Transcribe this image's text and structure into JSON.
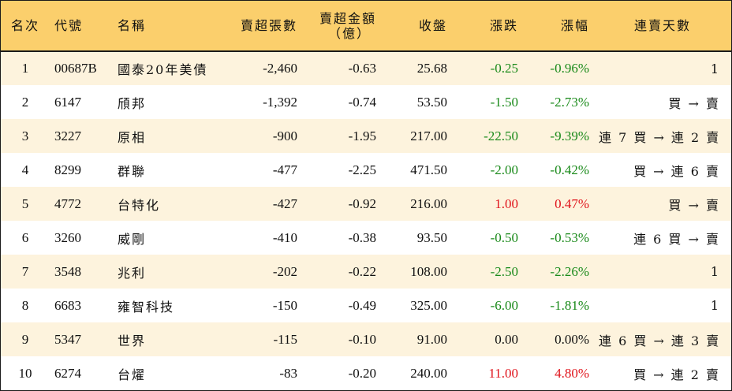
{
  "table": {
    "headers": {
      "rank": "名次",
      "code": "代號",
      "name": "名稱",
      "sell_shares": "賣超張數",
      "sell_amount_line1": "賣超金額",
      "sell_amount_line2": "（億）",
      "close": "收盤",
      "change": "漲跌",
      "change_pct": "漲幅",
      "streak": "連賣天數"
    },
    "rows": [
      {
        "rank": "1",
        "code": "00687B",
        "name": "國泰20年美債",
        "sell_shares": "-2,460",
        "sell_amount": "-0.63",
        "close": "25.68",
        "change": "-0.25",
        "change_pct": "-0.96%",
        "streak": "1"
      },
      {
        "rank": "2",
        "code": "6147",
        "name": "頎邦",
        "sell_shares": "-1,392",
        "sell_amount": "-0.74",
        "close": "53.50",
        "change": "-1.50",
        "change_pct": "-2.73%",
        "streak": "買 → 賣"
      },
      {
        "rank": "3",
        "code": "3227",
        "name": "原相",
        "sell_shares": "-900",
        "sell_amount": "-1.95",
        "close": "217.00",
        "change": "-22.50",
        "change_pct": "-9.39%",
        "streak": "連 7 買 → 連 2 賣"
      },
      {
        "rank": "4",
        "code": "8299",
        "name": "群聯",
        "sell_shares": "-477",
        "sell_amount": "-2.25",
        "close": "471.50",
        "change": "-2.00",
        "change_pct": "-0.42%",
        "streak": "買 → 連 6 賣"
      },
      {
        "rank": "5",
        "code": "4772",
        "name": "台特化",
        "sell_shares": "-427",
        "sell_amount": "-0.92",
        "close": "216.00",
        "change": "1.00",
        "change_pct": "0.47%",
        "streak": "買 → 賣"
      },
      {
        "rank": "6",
        "code": "3260",
        "name": "威剛",
        "sell_shares": "-410",
        "sell_amount": "-0.38",
        "close": "93.50",
        "change": "-0.50",
        "change_pct": "-0.53%",
        "streak": "連 6 買 → 賣"
      },
      {
        "rank": "7",
        "code": "3548",
        "name": "兆利",
        "sell_shares": "-202",
        "sell_amount": "-0.22",
        "close": "108.00",
        "change": "-2.50",
        "change_pct": "-2.26%",
        "streak": "1"
      },
      {
        "rank": "8",
        "code": "6683",
        "name": "雍智科技",
        "sell_shares": "-150",
        "sell_amount": "-0.49",
        "close": "325.00",
        "change": "-6.00",
        "change_pct": "-1.81%",
        "streak": "1"
      },
      {
        "rank": "9",
        "code": "5347",
        "name": "世界",
        "sell_shares": "-115",
        "sell_amount": "-0.10",
        "close": "91.00",
        "change": "0.00",
        "change_pct": "0.00%",
        "streak": "連 6 買 → 連 3 賣"
      },
      {
        "rank": "10",
        "code": "6274",
        "name": "台燿",
        "sell_shares": "-83",
        "sell_amount": "-0.20",
        "close": "240.00",
        "change": "11.00",
        "change_pct": "4.80%",
        "streak": "買 → 連 2 賣"
      }
    ]
  },
  "colors": {
    "header_bg": "#fbcf6c",
    "odd_row_bg": "#fdf3dd",
    "even_row_bg": "#ffffff",
    "down": "#1a8a1a",
    "up": "#e0141c",
    "flat": "#111111"
  }
}
